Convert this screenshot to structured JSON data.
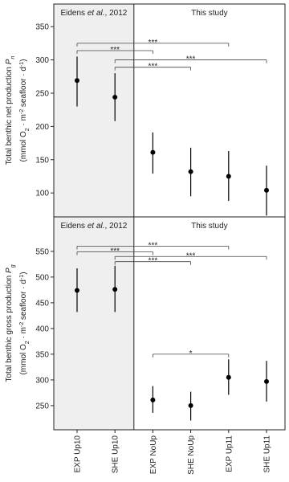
{
  "chart_data": [
    {
      "type": "errorpoint",
      "ylabel_parts": [
        {
          "text": "Total benthic net production ",
          "style": "normal"
        },
        {
          "text": "P",
          "style": "italic"
        },
        {
          "text": "n",
          "style": "sub-italic"
        }
      ],
      "unit_parts": [
        {
          "text": "(mmol O",
          "style": "normal"
        },
        {
          "text": "2",
          "style": "sub"
        },
        {
          "text": " · m",
          "style": "normal"
        },
        {
          "text": "-2",
          "style": "sup"
        },
        {
          "text": " seafloor · d",
          "style": "normal"
        },
        {
          "text": "-1",
          "style": "sup"
        },
        {
          "text": ")",
          "style": "normal"
        }
      ],
      "values": [
        269,
        244,
        161,
        132,
        125,
        104
      ],
      "lower": [
        230,
        208,
        129,
        95,
        88,
        66
      ],
      "upper": [
        305,
        280,
        191,
        168,
        163,
        141
      ],
      "color": "#000000",
      "ylim": [
        64,
        384
      ],
      "yticks": [
        100,
        150,
        200,
        250,
        300,
        350
      ],
      "regions": [
        {
          "parts": [
            {
              "text": "Eidens ",
              "style": "normal"
            },
            {
              "text": "et al.",
              "style": "italic"
            },
            {
              "text": ", 2012",
              "style": "normal"
            }
          ],
          "from": 0,
          "to": 1,
          "fill": "#efefef"
        },
        {
          "parts": [
            {
              "text": "This study",
              "style": "normal"
            }
          ],
          "from": 2,
          "to": 5,
          "fill": "#ffffff"
        }
      ],
      "brackets": [
        {
          "from": 0,
          "to": 4,
          "y": 325,
          "label": "***"
        },
        {
          "from": 0,
          "to": 2,
          "y": 314,
          "label": "***"
        },
        {
          "from": 1,
          "to": 5,
          "y": 300,
          "label": "***"
        },
        {
          "from": 1,
          "to": 3,
          "y": 289,
          "label": "***"
        }
      ]
    },
    {
      "type": "errorpoint",
      "ylabel_parts": [
        {
          "text": "Total benthic gross production ",
          "style": "normal"
        },
        {
          "text": "P",
          "style": "italic"
        },
        {
          "text": "g",
          "style": "sub-italic"
        }
      ],
      "unit_parts": [
        {
          "text": "(mmol O",
          "style": "normal"
        },
        {
          "text": "2",
          "style": "sub"
        },
        {
          "text": " · m",
          "style": "normal"
        },
        {
          "text": "-2",
          "style": "sup"
        },
        {
          "text": " seafloor · d",
          "style": "normal"
        },
        {
          "text": "-1",
          "style": "sup"
        },
        {
          "text": ")",
          "style": "normal"
        }
      ],
      "categories": [
        "EXP Up10",
        "SHE Up10",
        "EXP NoUp",
        "SHE NoUp",
        "EXP Up11",
        "SHE Up11"
      ],
      "values": [
        474,
        476,
        261,
        250,
        305,
        297
      ],
      "lower": [
        432,
        432,
        236,
        221,
        271,
        258
      ],
      "upper": [
        517,
        522,
        288,
        277,
        340,
        337
      ],
      "color": "#000000",
      "ylim": [
        203,
        617
      ],
      "yticks": [
        250,
        300,
        350,
        400,
        450,
        500,
        550
      ],
      "regions": [
        {
          "parts": [
            {
              "text": "Eidens ",
              "style": "normal"
            },
            {
              "text": "et al.",
              "style": "italic"
            },
            {
              "text": ", 2012",
              "style": "normal"
            }
          ],
          "from": 0,
          "to": 1,
          "fill": "#efefef"
        },
        {
          "parts": [
            {
              "text": "This study",
              "style": "normal"
            }
          ],
          "from": 2,
          "to": 5,
          "fill": "#ffffff"
        }
      ],
      "brackets": [
        {
          "from": 0,
          "to": 4,
          "y": 560,
          "label": "***"
        },
        {
          "from": 0,
          "to": 2,
          "y": 549,
          "label": "***"
        },
        {
          "from": 1,
          "to": 5,
          "y": 540,
          "label": "***"
        },
        {
          "from": 1,
          "to": 3,
          "y": 530,
          "label": "***"
        },
        {
          "from": 2,
          "to": 4,
          "y": 350,
          "label": "*"
        }
      ]
    }
  ]
}
